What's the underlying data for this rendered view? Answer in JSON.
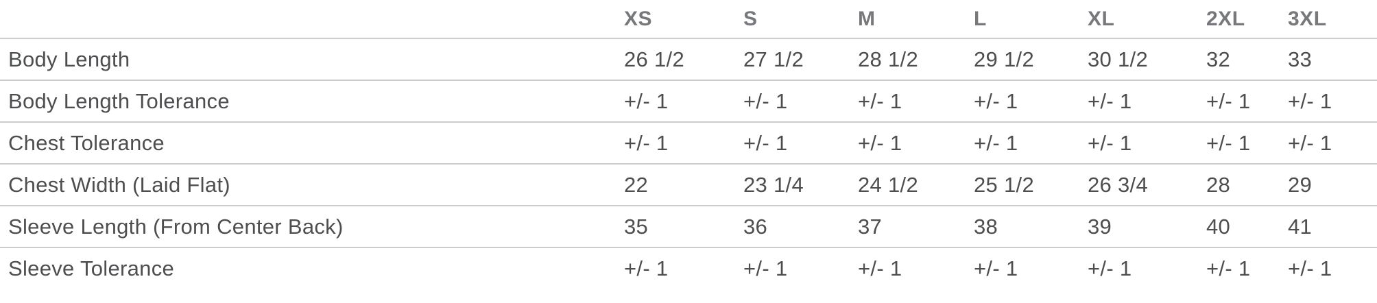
{
  "table": {
    "header": {
      "label_col": "",
      "columns": [
        "XS",
        "S",
        "M",
        "L",
        "XL",
        "2XL",
        "3XL"
      ]
    },
    "rows": [
      {
        "label": "Body Length",
        "values": [
          "26 1/2",
          "27 1/2",
          "28 1/2",
          "29 1/2",
          "30 1/2",
          "32",
          "33"
        ]
      },
      {
        "label": "Body Length Tolerance",
        "values": [
          "+/- 1",
          "+/- 1",
          "+/- 1",
          "+/- 1",
          "+/- 1",
          "+/- 1",
          "+/- 1"
        ]
      },
      {
        "label": "Chest Tolerance",
        "values": [
          "+/- 1",
          "+/- 1",
          "+/- 1",
          "+/- 1",
          "+/- 1",
          "+/- 1",
          "+/- 1"
        ]
      },
      {
        "label": "Chest Width (Laid Flat)",
        "values": [
          "22",
          "23 1/4",
          "24 1/2",
          "25 1/2",
          "26 3/4",
          "28",
          "29"
        ]
      },
      {
        "label": "Sleeve Length (From Center Back)",
        "values": [
          "35",
          "36",
          "37",
          "38",
          "39",
          "40",
          "41"
        ]
      },
      {
        "label": "Sleeve Tolerance",
        "values": [
          "+/- 1",
          "+/- 1",
          "+/- 1",
          "+/- 1",
          "+/- 1",
          "+/- 1",
          "+/- 1"
        ]
      }
    ]
  },
  "colors": {
    "header_text": "#77787b",
    "body_text": "#4d4e50",
    "divider": "#cccccc",
    "background": "#ffffff"
  }
}
